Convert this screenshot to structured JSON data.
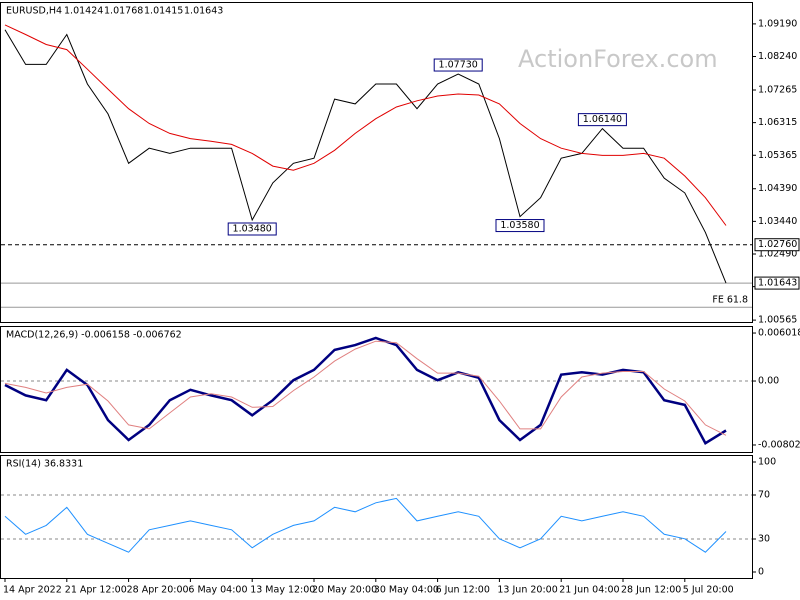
{
  "watermark": "ActionForex.com",
  "chart_data": [
    {
      "type": "line",
      "title": "EURUSD,H4",
      "ohlc": [
        1.01424,
        1.01768,
        1.01415,
        1.01643
      ],
      "categories": [
        "14 Apr 2022",
        null,
        null,
        "21 Apr 12:00",
        null,
        null,
        "28 Apr 20:00",
        null,
        null,
        "6 May 04:00",
        null,
        null,
        "13 May 12:00",
        null,
        null,
        "20 May 20:00",
        null,
        null,
        "30 May 04:00",
        null,
        null,
        "6 Jun 12:00",
        null,
        null,
        "13 Jun 20:00",
        null,
        null,
        "21 Jun 04:00",
        null,
        null,
        "28 Jun 12:00",
        null,
        null,
        "5 Jul 20:00",
        null,
        null
      ],
      "series": [
        {
          "name": "EURUSD",
          "color": "#000000",
          "values": [
            1.0902,
            1.0801,
            1.0801,
            1.0888,
            1.0744,
            1.0657,
            1.0513,
            1.0557,
            1.0542,
            1.0557,
            1.0557,
            1.0557,
            1.0348,
            1.0456,
            1.0513,
            1.0528,
            1.07,
            1.0686,
            1.0744,
            1.0744,
            1.0672,
            1.0744,
            1.0773,
            1.0744,
            1.0585,
            1.0358,
            1.0413,
            1.0528,
            1.0542,
            1.0614,
            1.0557,
            1.0557,
            1.047,
            1.0427,
            1.0312,
            1.01643
          ],
          "value_labels": [
            null,
            null,
            null,
            null,
            null,
            null,
            null,
            null,
            null,
            null,
            null,
            null,
            "1.03480",
            null,
            null,
            null,
            null,
            null,
            null,
            null,
            null,
            null,
            "1.07730",
            null,
            null,
            "1.03580",
            null,
            null,
            null,
            "1.06140",
            null,
            null,
            null,
            null,
            null,
            null
          ]
        },
        {
          "name": "MA",
          "color": "#e00000",
          "values": [
            1.0916,
            1.0888,
            1.0859,
            1.0844,
            1.0787,
            1.0729,
            1.0672,
            1.0629,
            1.06,
            1.0585,
            1.0577,
            1.0568,
            1.0542,
            1.0505,
            1.0493,
            1.0513,
            1.0551,
            1.06,
            1.0643,
            1.0677,
            1.0695,
            1.0709,
            1.0715,
            1.0712,
            1.0686,
            1.0629,
            1.0585,
            1.0557,
            1.0542,
            1.0536,
            1.0536,
            1.0542,
            1.0528,
            1.0476,
            1.0413,
            1.0332
          ]
        }
      ],
      "hlines": [
        {
          "value": 1.0276,
          "label": "1.02760",
          "style": "dashed",
          "label_position": "axis"
        },
        {
          "value": 1.01643,
          "label": "1.01643",
          "style": "solid",
          "label_position": "axis"
        },
        {
          "value": 1.0094,
          "label": "FE 61.8",
          "style": "solid",
          "label_position": "inside"
        }
      ],
      "ylim": [
        1.0051,
        1.0974
      ],
      "yticks": [
        {
          "value": 1.0919,
          "label": "1.09190"
        },
        {
          "value": 1.0824,
          "label": "1.08240"
        },
        1.07265,
        1.06315,
        1.05365,
        {
          "value": 1.0439,
          "label": "1.04390"
        },
        {
          "value": 1.0344,
          "label": "1.03440"
        },
        {
          "value": 1.0249,
          "label": "1.02490"
        },
        {
          "value": 1.0154,
          "label": "1.01540"
        },
        1.00565
      ]
    },
    {
      "type": "line",
      "title": "MACD(12,26,9) -0.006158 -0.006762",
      "series": [
        {
          "name": "MACD",
          "color": "#000080",
          "values": [
            -0.0005,
            -0.0018,
            -0.0024,
            0.0014,
            -0.0005,
            -0.0049,
            -0.0074,
            -0.0055,
            -0.0024,
            -0.0011,
            -0.0018,
            -0.0024,
            -0.0043,
            -0.0024,
            0.0001,
            0.0014,
            0.0039,
            0.0045,
            0.0054,
            0.0045,
            0.0014,
            0.0001,
            0.0011,
            0.0004,
            -0.0049,
            -0.0074,
            -0.0055,
            0.0008,
            0.0011,
            0.0008,
            0.0014,
            0.0011,
            -0.0024,
            -0.003,
            -0.0078,
            -0.0062
          ]
        },
        {
          "name": "Signal",
          "color": "#e08080",
          "values": [
            -0.0003,
            -0.0008,
            -0.0015,
            -0.0008,
            -0.0004,
            -0.0025,
            -0.0055,
            -0.006,
            -0.004,
            -0.002,
            -0.0016,
            -0.002,
            -0.0033,
            -0.0032,
            -0.0012,
            0.0005,
            0.0025,
            0.004,
            0.005,
            0.0048,
            0.0028,
            0.001,
            0.001,
            0.0006,
            -0.0025,
            -0.006,
            -0.006,
            -0.002,
            0.0005,
            0.001,
            0.0012,
            0.0012,
            -0.001,
            -0.0025,
            -0.0055,
            -0.0068
          ]
        }
      ],
      "levels": [
        0
      ],
      "ylim": [
        -0.0089,
        0.0069
      ],
      "yticks": [
        0.006018,
        {
          "value": 0,
          "label": "0.00"
        },
        -0.00802
      ]
    },
    {
      "type": "line",
      "title": "RSI(14) 36.8331",
      "series": [
        {
          "name": "RSI",
          "color": "#1e90ff",
          "values": [
            50.6,
            34.3,
            42.4,
            58.8,
            34.3,
            26.1,
            18.0,
            38.4,
            42.4,
            46.5,
            42.4,
            38.4,
            22.0,
            34.3,
            42.4,
            46.5,
            58.8,
            54.7,
            62.9,
            66.9,
            46.5,
            50.6,
            54.7,
            50.6,
            30.2,
            22.0,
            30.2,
            50.6,
            46.5,
            50.6,
            54.7,
            50.6,
            34.3,
            30.2,
            18.0,
            36.8
          ]
        }
      ],
      "levels": [
        70,
        30
      ],
      "ylim": [
        0,
        100
      ],
      "yticks": [
        100,
        70,
        30,
        0
      ]
    }
  ]
}
